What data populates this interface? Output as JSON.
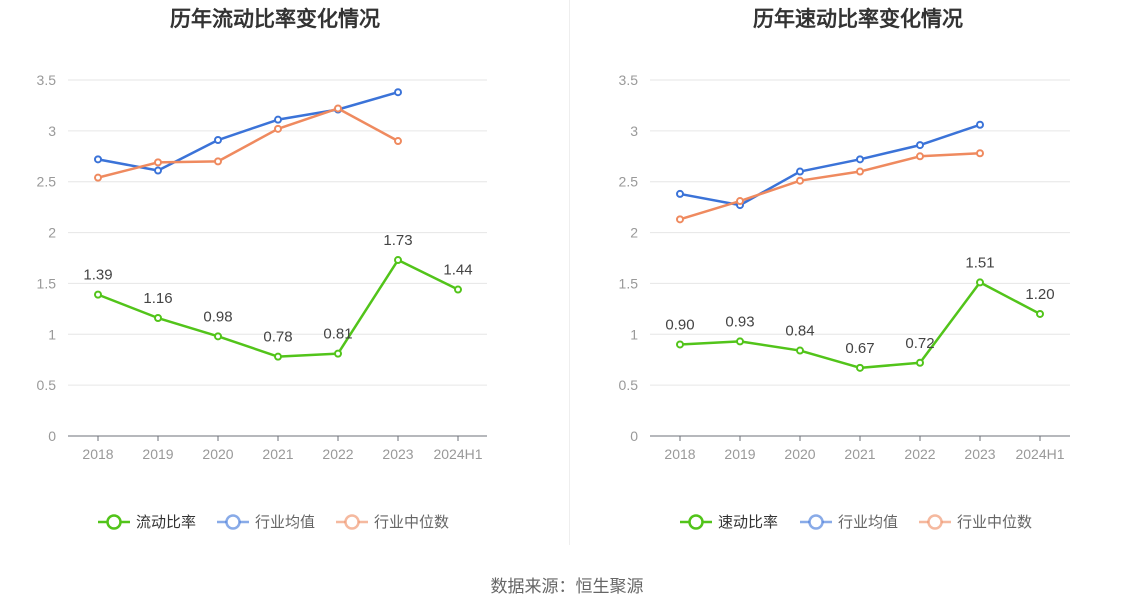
{
  "source_text": "数据来源：恒生聚源",
  "chart_data": [
    {
      "type": "line",
      "title": "历年流动比率变化情况",
      "categories": [
        "2018",
        "2019",
        "2020",
        "2021",
        "2022",
        "2023",
        "2024H1"
      ],
      "ylim": [
        0,
        3.5
      ],
      "yticks": [
        "0",
        "0.5",
        "1",
        "1.5",
        "2",
        "2.5",
        "3",
        "3.5"
      ],
      "grid": true,
      "legend_position": "bottom",
      "series": [
        {
          "name": "流动比率",
          "color": "#52c41a",
          "values": [
            1.39,
            1.16,
            0.98,
            0.78,
            0.81,
            1.73,
            1.44
          ],
          "labels": [
            "1.39",
            "1.16",
            "0.98",
            "0.78",
            "0.81",
            "1.73",
            "1.44"
          ]
        },
        {
          "name": "行业均值",
          "color": "#3b73d8",
          "values": [
            2.72,
            2.61,
            2.91,
            3.11,
            3.21,
            3.38,
            null
          ]
        },
        {
          "name": "行业中位数",
          "color": "#ef8a5f",
          "values": [
            2.54,
            2.69,
            2.7,
            3.02,
            3.22,
            2.9,
            null
          ]
        }
      ]
    },
    {
      "type": "line",
      "title": "历年速动比率变化情况",
      "categories": [
        "2018",
        "2019",
        "2020",
        "2021",
        "2022",
        "2023",
        "2024H1"
      ],
      "ylim": [
        0,
        3.5
      ],
      "yticks": [
        "0",
        "0.5",
        "1",
        "1.5",
        "2",
        "2.5",
        "3",
        "3.5"
      ],
      "grid": true,
      "legend_position": "bottom",
      "series": [
        {
          "name": "速动比率",
          "color": "#52c41a",
          "values": [
            0.9,
            0.93,
            0.84,
            0.67,
            0.72,
            1.51,
            1.2
          ],
          "labels": [
            "0.90",
            "0.93",
            "0.84",
            "0.67",
            "0.72",
            "1.51",
            "1.20"
          ]
        },
        {
          "name": "行业均值",
          "color": "#3b73d8",
          "values": [
            2.38,
            2.27,
            2.6,
            2.72,
            2.86,
            3.06,
            null
          ]
        },
        {
          "name": "行业中位数",
          "color": "#ef8a5f",
          "values": [
            2.13,
            2.31,
            2.51,
            2.6,
            2.75,
            2.78,
            null
          ]
        }
      ]
    }
  ]
}
